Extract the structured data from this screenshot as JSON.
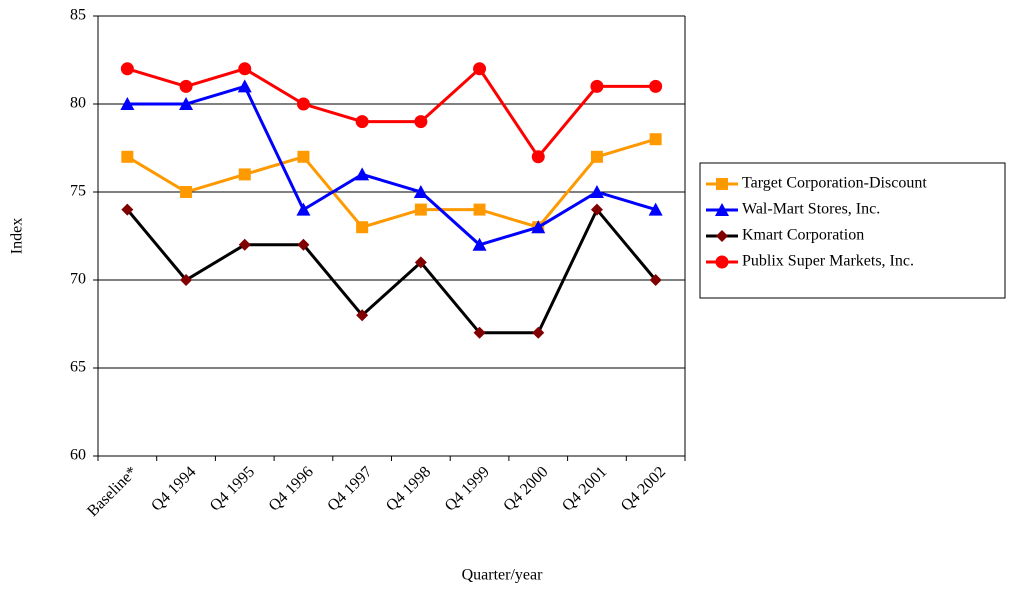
{
  "chart_data": {
    "type": "line",
    "xlabel": "Quarter/year",
    "ylabel": "Index",
    "categories": [
      "Baseline*",
      "Q4 1994",
      "Q4 1995",
      "Q4 1996",
      "Q4 1997",
      "Q4 1998",
      "Q4 1999",
      "Q4 2000",
      "Q4 2001",
      "Q4 2002"
    ],
    "series": [
      {
        "name": "Target Corporation-Discount",
        "color": "#ff9900",
        "marker": "square",
        "marker_color": "#ff9900",
        "values": [
          77,
          75,
          76,
          77,
          73,
          74,
          74,
          73,
          77,
          78
        ]
      },
      {
        "name": "Wal-Mart Stores, Inc.",
        "color": "#0000ff",
        "marker": "triangle",
        "marker_color": "#0000ff",
        "values": [
          80,
          80,
          81,
          74,
          76,
          75,
          72,
          73,
          75,
          74
        ]
      },
      {
        "name": "Kmart Corporation",
        "color": "#000000",
        "marker": "diamond",
        "marker_color": "#800000",
        "values": [
          74,
          70,
          72,
          72,
          68,
          71,
          67,
          67,
          74,
          70
        ]
      },
      {
        "name": "Publix Super Markets, Inc.",
        "color": "#ff0000",
        "marker": "circle",
        "marker_color": "#ff0000",
        "values": [
          82,
          81,
          82,
          80,
          79,
          79,
          82,
          77,
          81,
          81
        ]
      }
    ],
    "ylim": [
      60,
      85
    ],
    "yticks": [
      60,
      65,
      70,
      75,
      80,
      85
    ],
    "grid": true,
    "legend": "right"
  }
}
